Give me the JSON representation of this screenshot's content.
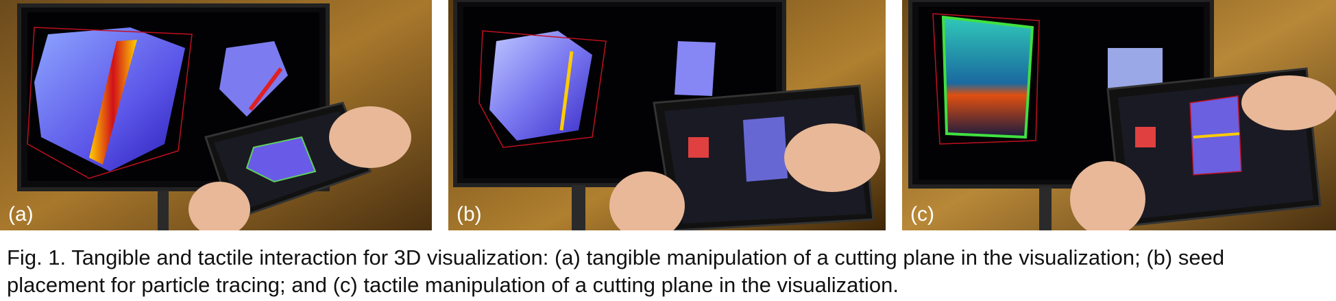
{
  "figure": {
    "panels": [
      {
        "label": "(a)"
      },
      {
        "label": "(b)"
      },
      {
        "label": "(c)"
      }
    ],
    "caption_line1": "Fig. 1. Tangible and tactile interaction for 3D visualization: (a) tangible manipulation of a cutting plane in the visualization; (b) seed",
    "caption_line2": "placement for particle tracing; and (c) tactile manipulation of a cutting plane in the visualization."
  }
}
